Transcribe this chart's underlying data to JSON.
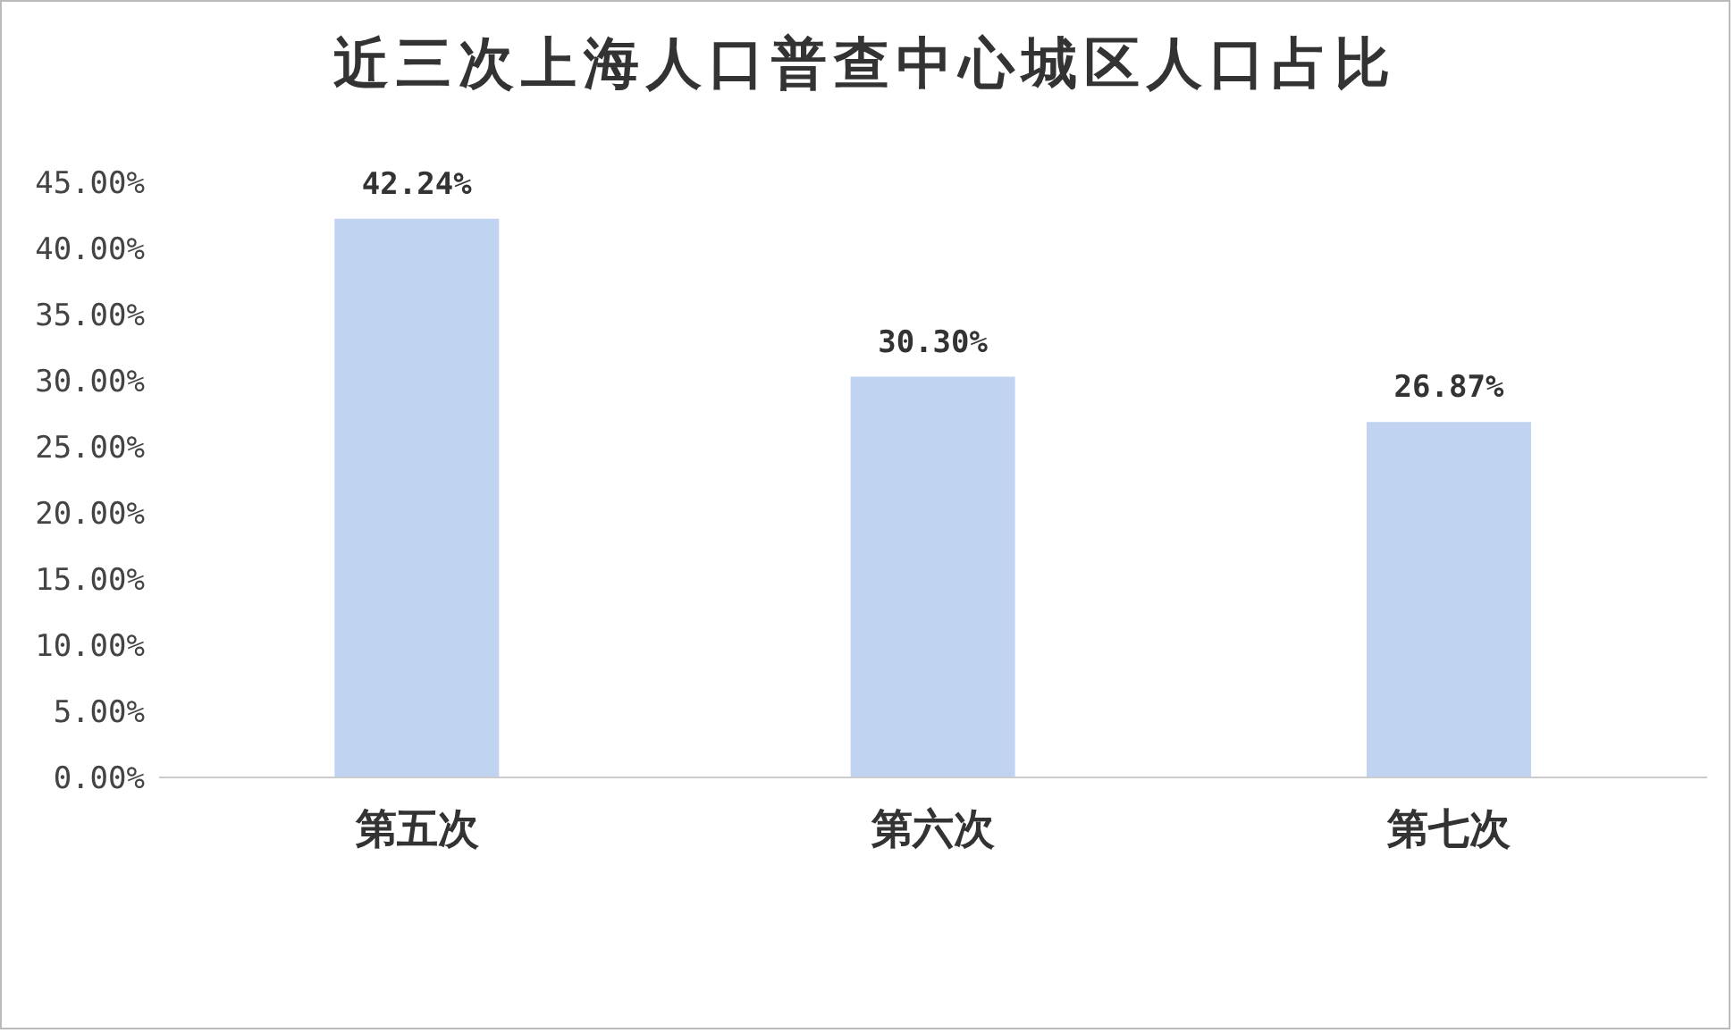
{
  "chart_data": {
    "type": "bar",
    "title": "近三次上海人口普查中心城区人口占比",
    "categories": [
      "第五次",
      "第六次",
      "第七次"
    ],
    "values": [
      42.24,
      30.3,
      26.87
    ],
    "value_labels": [
      "42.24%",
      "30.30%",
      "26.87%"
    ],
    "color": "#c0d4f2",
    "ylim": [
      0,
      45
    ],
    "yticks": [
      {
        "value": 0,
        "label": "0.00%"
      },
      {
        "value": 5,
        "label": "5.00%"
      },
      {
        "value": 10,
        "label": "10.00%"
      },
      {
        "value": 15,
        "label": "15.00%"
      },
      {
        "value": 20,
        "label": "20.00%"
      },
      {
        "value": 25,
        "label": "25.00%"
      },
      {
        "value": 30,
        "label": "30.00%"
      },
      {
        "value": 35,
        "label": "35.00%"
      },
      {
        "value": 40,
        "label": "40.00%"
      },
      {
        "value": 45,
        "label": "45.00%"
      }
    ],
    "grid": false,
    "legend": false
  }
}
